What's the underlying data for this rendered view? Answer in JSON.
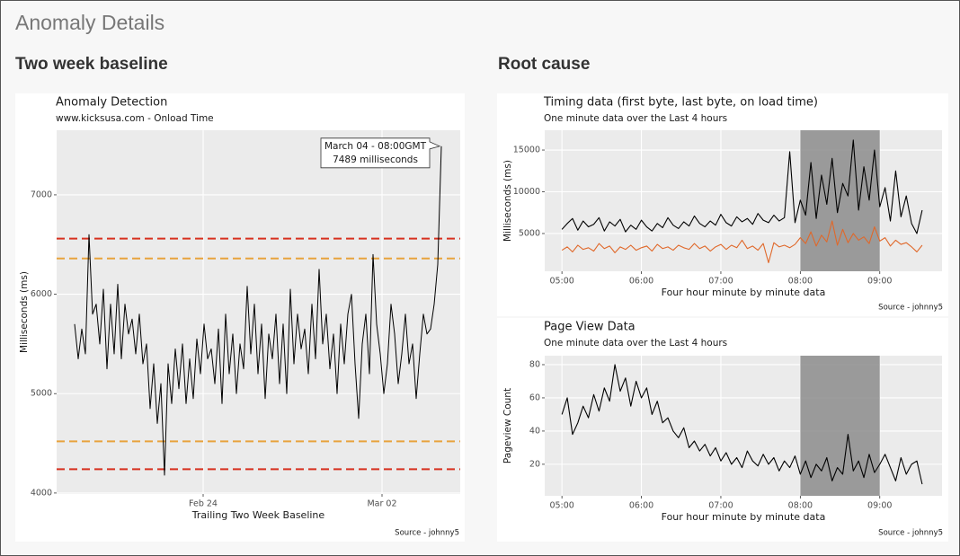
{
  "page": {
    "title": "Anomaly Details",
    "sections": [
      "Two week baseline",
      "Root cause"
    ]
  },
  "chart_data": [
    {
      "type": "line",
      "title": "Anomaly Detection",
      "subtitle": "www.kicksusa.com - Onload Time",
      "xlabel": "Trailing Two Week Baseline",
      "ylabel": "Milliseconds (ms)",
      "caption": "Source - johnny5",
      "color": "#000000",
      "values": [
        5700,
        5350,
        5650,
        5400,
        6600,
        5800,
        5900,
        5500,
        6050,
        5250,
        5900,
        5400,
        6100,
        5350,
        5900,
        5600,
        5750,
        5400,
        5800,
        5300,
        5500,
        4850,
        5300,
        4700,
        5100,
        4180,
        5300,
        4900,
        5450,
        5050,
        5500,
        4900,
        5350,
        4950,
        5550,
        5200,
        5700,
        5350,
        5450,
        5100,
        5650,
        4900,
        5800,
        5200,
        5600,
        5000,
        5500,
        5250,
        6080,
        5400,
        5900,
        5200,
        5700,
        4950,
        5600,
        5350,
        5800,
        5100,
        5700,
        5000,
        6050,
        5300,
        5800,
        5450,
        5650,
        5200,
        5900,
        5350,
        6250,
        5500,
        5800,
        5250,
        5600,
        5000,
        5700,
        5300,
        5800,
        6000,
        5300,
        4750,
        5500,
        5800,
        5200,
        6400,
        5700,
        5400,
        5000,
        5300,
        5900,
        5600,
        5100,
        5400,
        5800,
        5300,
        5500,
        4950,
        5400,
        5800,
        5600,
        5650,
        5900,
        6300,
        7489
      ],
      "xlim": [
        -5,
        107.25
      ],
      "xticks": [
        {
          "value": 35.75,
          "label": "Feb 24"
        },
        {
          "value": 85.5,
          "label": "Mar 02"
        }
      ],
      "ylim": [
        3990,
        7650
      ],
      "yticks": [
        4000,
        5000,
        6000,
        7000
      ],
      "grid": true,
      "reference_lines": [
        {
          "value": 6560,
          "color": "#d7301f"
        },
        {
          "value": 6360,
          "color": "#e8a33d"
        },
        {
          "value": 4520,
          "color": "#e8a33d"
        },
        {
          "value": 4240,
          "color": "#d7301f"
        }
      ],
      "annotation": [
        "March 04 - 08:00GMT",
        "7489 milliseconds"
      ]
    },
    {
      "type": "line",
      "title": "Timing data (first byte, last byte, on load time)",
      "subtitle": "One minute data over the Last 4 hours",
      "xlabel": "Four hour minute by minute data",
      "ylabel": "Milliseconds (ms)",
      "caption": "Source - johnny5",
      "x": [
        0,
        4,
        8,
        12,
        16,
        20,
        24,
        28,
        32,
        36,
        40,
        44,
        48,
        52,
        56,
        60,
        64,
        68,
        72,
        76,
        80,
        84,
        88,
        92,
        96,
        100,
        104,
        108,
        112,
        116,
        120,
        124,
        128,
        132,
        136,
        140,
        144,
        148,
        152,
        156,
        160,
        164,
        168,
        172,
        176,
        180,
        184,
        188,
        192,
        196,
        200,
        204,
        208,
        212,
        216,
        220,
        224,
        228,
        232,
        236,
        240,
        244,
        248,
        252,
        256,
        260,
        264,
        268,
        272
      ],
      "series": [
        {
          "color": "#000000",
          "values": [
            5500,
            6200,
            6800,
            5400,
            6500,
            5800,
            6100,
            6900,
            5300,
            6400,
            5900,
            6700,
            5200,
            6000,
            5500,
            6600,
            5800,
            5300,
            6200,
            5700,
            6900,
            6000,
            5600,
            6400,
            5900,
            7100,
            6200,
            5800,
            6500,
            6000,
            7300,
            6300,
            5900,
            7000,
            6400,
            6800,
            6100,
            7400,
            6600,
            6300,
            7200,
            6500,
            6900,
            14800,
            6300,
            9000,
            7200,
            13500,
            6800,
            12000,
            8500,
            14000,
            7500,
            11000,
            9500,
            16200,
            7800,
            13000,
            9000,
            15000,
            8200,
            10500,
            6500,
            12500,
            7000,
            9500,
            6200,
            5000,
            7800
          ]
        },
        {
          "color": "#e0682a",
          "values": [
            3000,
            3400,
            2800,
            3600,
            3100,
            3300,
            2900,
            3800,
            3200,
            3500,
            2700,
            3400,
            3100,
            3600,
            3000,
            3300,
            3500,
            2900,
            3700,
            3200,
            3400,
            3000,
            3600,
            3300,
            3100,
            3800,
            3200,
            3500,
            2900,
            3400,
            3700,
            3100,
            3600,
            3300,
            4200,
            3200,
            3500,
            3000,
            3800,
            1500,
            3900,
            3400,
            3600,
            3300,
            3700,
            4500,
            3800,
            5200,
            3500,
            4800,
            4000,
            6500,
            3600,
            5500,
            3900,
            5000,
            4200,
            4600,
            3800,
            5800,
            4100,
            4500,
            3500,
            4200,
            3700,
            3900,
            3400,
            2800,
            3600
          ]
        }
      ],
      "xlim": [
        -13,
        287
      ],
      "xticks": [
        {
          "value": 0,
          "label": "05:00"
        },
        {
          "value": 60,
          "label": "06:00"
        },
        {
          "value": 120,
          "label": "07:00"
        },
        {
          "value": 180,
          "label": "08:00"
        },
        {
          "value": 240,
          "label": "09:00"
        }
      ],
      "ylim": [
        480,
        17370
      ],
      "yticks": [
        5000,
        10000,
        15000
      ],
      "grid": true,
      "highlight": {
        "xmin": 180,
        "xmax": 240,
        "color": "#8c8c8c"
      }
    },
    {
      "type": "line",
      "title": "Page View Data",
      "subtitle": "One minute data over the Last 4 hours",
      "xlabel": "Four hour minute by minute data",
      "ylabel": "Pageview Count",
      "caption": "Source - johnny5",
      "x": [
        0,
        4,
        8,
        12,
        16,
        20,
        24,
        28,
        32,
        36,
        40,
        44,
        48,
        52,
        56,
        60,
        64,
        68,
        72,
        76,
        80,
        84,
        88,
        92,
        96,
        100,
        104,
        108,
        112,
        116,
        120,
        124,
        128,
        132,
        136,
        140,
        144,
        148,
        152,
        156,
        160,
        164,
        168,
        172,
        176,
        180,
        184,
        188,
        192,
        196,
        200,
        204,
        208,
        212,
        216,
        220,
        224,
        228,
        232,
        236,
        240,
        244,
        248,
        252,
        256,
        260,
        264,
        268,
        272
      ],
      "series": [
        {
          "color": "#000000",
          "values": [
            50,
            60,
            38,
            45,
            55,
            48,
            62,
            52,
            66,
            58,
            80,
            64,
            72,
            55,
            70,
            60,
            66,
            50,
            58,
            45,
            48,
            40,
            36,
            42,
            30,
            34,
            28,
            32,
            25,
            30,
            22,
            27,
            20,
            24,
            18,
            28,
            22,
            19,
            26,
            20,
            24,
            16,
            22,
            18,
            25,
            14,
            22,
            12,
            20,
            16,
            24,
            10,
            18,
            14,
            38,
            16,
            22,
            12,
            26,
            15,
            20,
            26,
            18,
            10,
            24,
            14,
            20,
            22,
            8
          ]
        }
      ],
      "xlim": [
        -13,
        287
      ],
      "xticks": [
        {
          "value": 0,
          "label": "05:00"
        },
        {
          "value": 60,
          "label": "06:00"
        },
        {
          "value": 120,
          "label": "07:00"
        },
        {
          "value": 180,
          "label": "08:00"
        },
        {
          "value": 240,
          "label": "09:00"
        }
      ],
      "ylim": [
        1,
        85.4
      ],
      "yticks": [
        20,
        40,
        60,
        80
      ],
      "grid": true,
      "highlight": {
        "xmin": 180,
        "xmax": 240,
        "color": "#8c8c8c"
      }
    }
  ]
}
